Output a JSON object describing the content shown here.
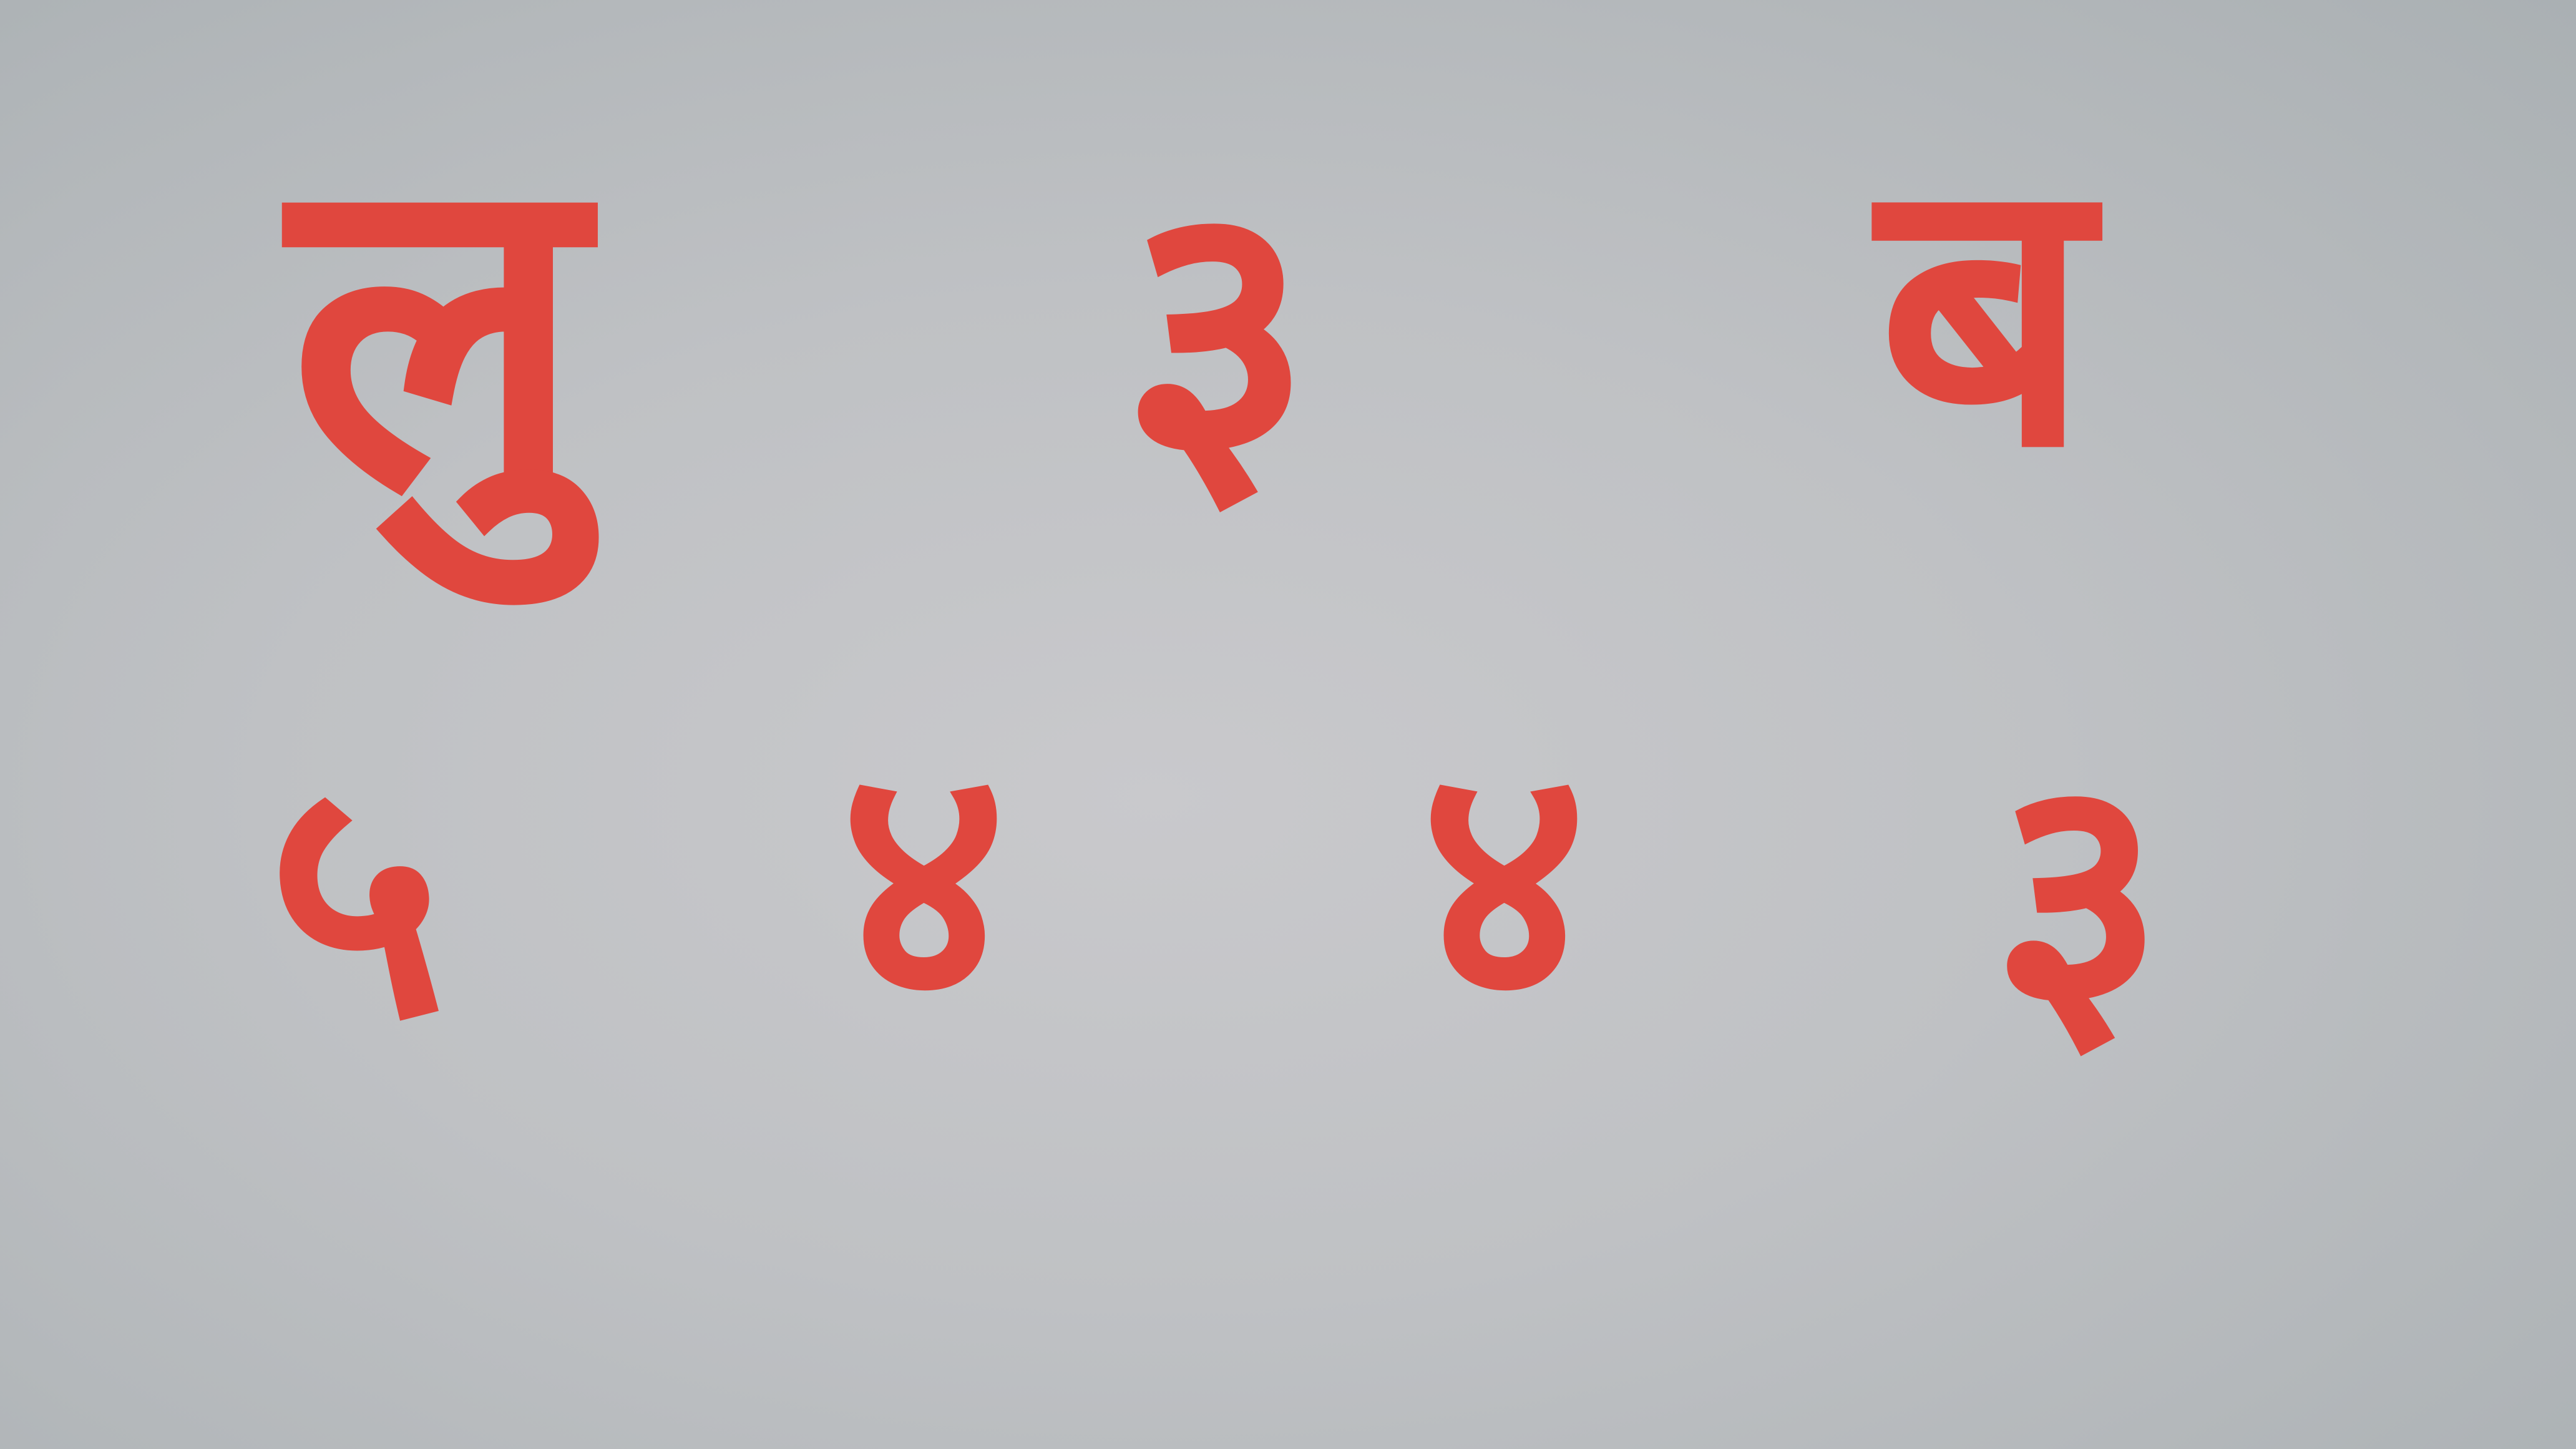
{
  "card": {
    "background_color": "#c3c4c6",
    "ink_color": "#e0473e",
    "top_row": [
      "लु",
      "३",
      "ब"
    ],
    "bottom_row": [
      "५",
      "४",
      "४",
      "३"
    ]
  }
}
